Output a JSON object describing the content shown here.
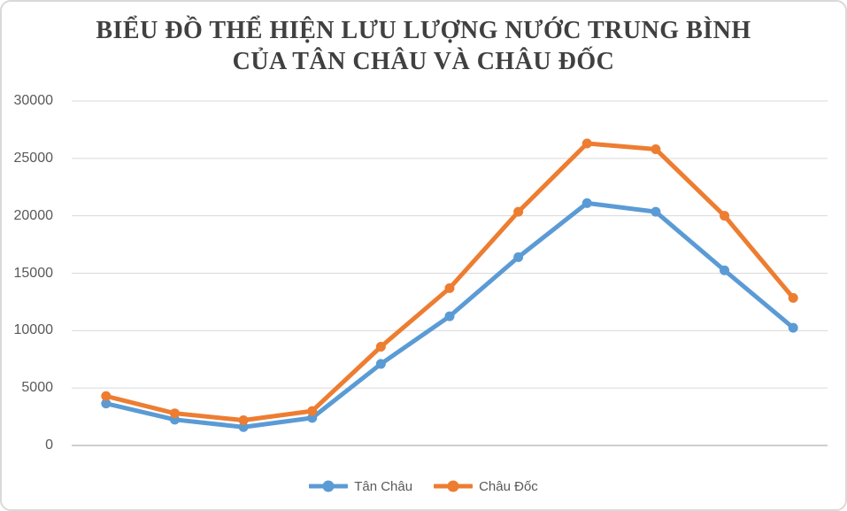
{
  "window": {
    "background": "#FFFFFF",
    "border_color": "#D9D9D9"
  },
  "title": {
    "line1": "BIỂU ĐỒ THỂ HIỆN LƯU LƯỢNG NƯỚC TRUNG BÌNH",
    "line2": "CỦA TÂN CHÂU VÀ CHÂU ĐỐC",
    "color": "#404040"
  },
  "chart_data": {
    "type": "line",
    "title": "BIỂU ĐỒ THỂ HIỆN LƯU LƯỢNG NƯỚC TRUNG BÌNH CỦA TÂN CHÂU VÀ CHÂU ĐỐC",
    "x": [
      1,
      2,
      3,
      4,
      5,
      6,
      7,
      8,
      9,
      10,
      11
    ],
    "x_tick_labels_visible": false,
    "xlabel": "",
    "ylabel": "",
    "ylim": [
      0,
      30000
    ],
    "y_ticks": [
      0,
      5000,
      10000,
      15000,
      20000,
      25000,
      30000
    ],
    "grid": "horizontal",
    "gridline_color": "#D9D9D9",
    "axis_line_color": "#BFBFBF",
    "tick_label_color": "#595959",
    "marker": "circle",
    "legend_position": "bottom-center",
    "series": [
      {
        "name": "Tân Châu",
        "color": "#5B9BD5",
        "values": [
          3650,
          2250,
          1600,
          2400,
          7100,
          11250,
          16400,
          21100,
          20350,
          15250,
          10250
        ]
      },
      {
        "name": "Châu Đốc",
        "color": "#ED7D31",
        "values": [
          4300,
          2800,
          2200,
          3000,
          8600,
          13700,
          20350,
          26300,
          25800,
          20000,
          12850
        ]
      }
    ]
  },
  "legend": {
    "items": [
      {
        "label": "Tân Châu",
        "color": "#5B9BD5"
      },
      {
        "label": "Châu Đốc",
        "color": "#ED7D31"
      }
    ],
    "text_color": "#595959"
  }
}
